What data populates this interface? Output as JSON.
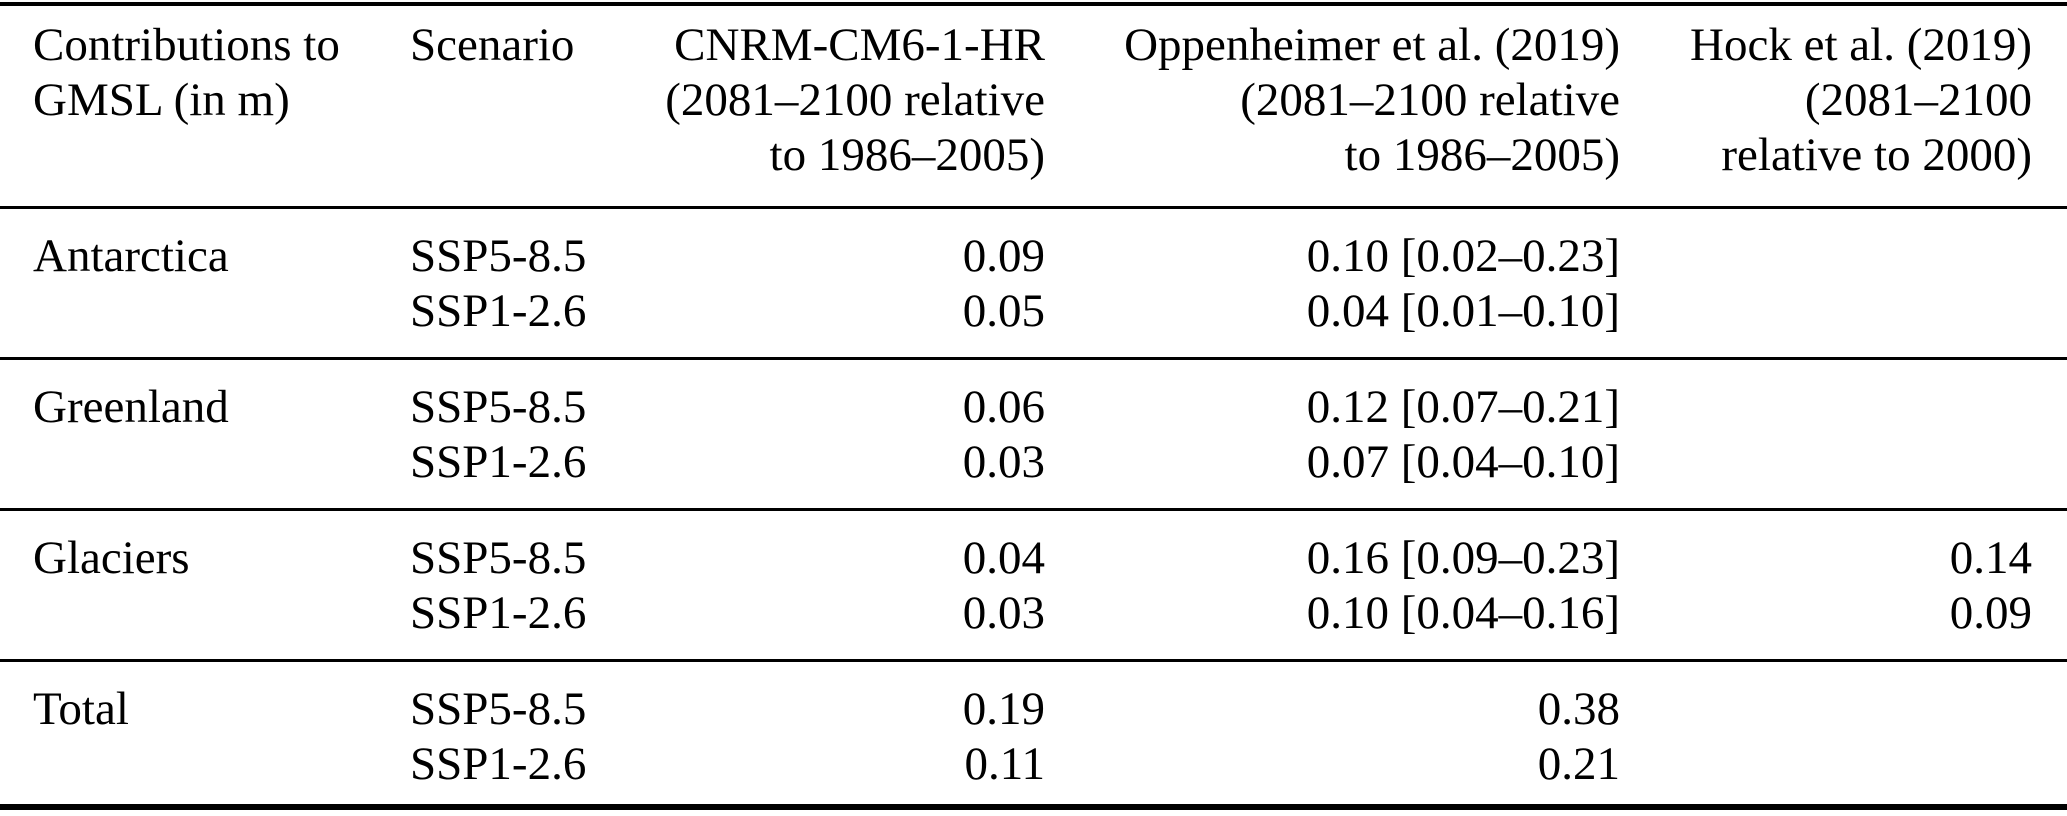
{
  "table": {
    "title": "Contributions to GMSL table",
    "columns": [
      {
        "id": "contributions",
        "align": "left",
        "lines": [
          "Contributions to",
          "GMSL (in m)"
        ]
      },
      {
        "id": "scenario",
        "align": "left",
        "lines": [
          "Scenario"
        ]
      },
      {
        "id": "cnrm",
        "align": "right",
        "lines": [
          "CNRM-CM6-1-HR",
          "(2081–2100 relative",
          "to 1986–2005)"
        ]
      },
      {
        "id": "oppenheimer",
        "align": "right",
        "lines": [
          "Oppenheimer et al. (2019)",
          "(2081–2100 relative",
          "to 1986–2005)"
        ]
      },
      {
        "id": "hock",
        "align": "right",
        "lines": [
          "Hock et al. (2019)",
          "(2081–2100",
          "relative to 2000)"
        ]
      }
    ],
    "groups": [
      {
        "name": "Antarctica",
        "rows": [
          {
            "scenario": "SSP5-8.5",
            "cnrm": "0.09",
            "oppenheimer": "0.10 [0.02–0.23]",
            "hock": ""
          },
          {
            "scenario": "SSP1-2.6",
            "cnrm": "0.05",
            "oppenheimer": "0.04 [0.01–0.10]",
            "hock": ""
          }
        ]
      },
      {
        "name": "Greenland",
        "rows": [
          {
            "scenario": "SSP5-8.5",
            "cnrm": "0.06",
            "oppenheimer": "0.12 [0.07–0.21]",
            "hock": ""
          },
          {
            "scenario": "SSP1-2.6",
            "cnrm": "0.03",
            "oppenheimer": "0.07 [0.04–0.10]",
            "hock": ""
          }
        ]
      },
      {
        "name": "Glaciers",
        "rows": [
          {
            "scenario": "SSP5-8.5",
            "cnrm": "0.04",
            "oppenheimer": "0.16 [0.09–0.23]",
            "hock": "0.14"
          },
          {
            "scenario": "SSP1-2.6",
            "cnrm": "0.03",
            "oppenheimer": "0.10 [0.04–0.16]",
            "hock": "0.09"
          }
        ]
      },
      {
        "name": "Total",
        "rows": [
          {
            "scenario": "SSP5-8.5",
            "cnrm": "0.19",
            "oppenheimer": "0.38",
            "hock": ""
          },
          {
            "scenario": "SSP1-2.6",
            "cnrm": "0.11",
            "oppenheimer": "0.21",
            "hock": ""
          }
        ]
      }
    ],
    "colors": {
      "text": "#000000",
      "background": "#ffffff",
      "rule": "#000000"
    }
  }
}
